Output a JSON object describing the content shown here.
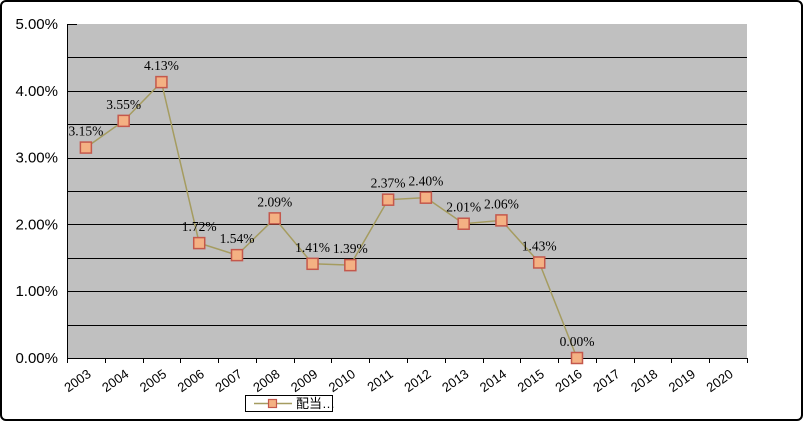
{
  "chart_data": {
    "type": "line",
    "title": "",
    "xlabel": "",
    "ylabel": "",
    "categories": [
      "2003",
      "2004",
      "2005",
      "2006",
      "2007",
      "2008",
      "2009",
      "2010",
      "2011",
      "2012",
      "2013",
      "2014",
      "2015",
      "2016",
      "2017",
      "2018",
      "2019",
      "2020"
    ],
    "series": [
      {
        "name": "配当…",
        "values": [
          3.15,
          3.55,
          4.13,
          1.72,
          1.54,
          2.09,
          1.41,
          1.39,
          2.37,
          2.4,
          2.01,
          2.06,
          1.43,
          0.0,
          null,
          null,
          null,
          null
        ]
      }
    ],
    "data_labels": [
      "3.15%",
      "3.55%",
      "4.13%",
      "1.72%",
      "1.54%",
      "2.09%",
      "1.41%",
      "1.39%",
      "2.37%",
      "2.40%",
      "2.01%",
      "2.06%",
      "1.43%",
      "0.00%"
    ],
    "y_tick_labels": [
      "0.00%",
      "1.00%",
      "2.00%",
      "3.00%",
      "4.00%",
      "5.00%"
    ],
    "ylim": [
      0,
      5
    ],
    "gridline_step_pct": 0.5,
    "grid": "on",
    "legend": {
      "label": "配当…",
      "position": "bottom"
    },
    "colors": {
      "plot_bg": "#c0c0c0",
      "grid": "#000000",
      "axis": "#000000",
      "line": "#a59c60",
      "marker_fill": "#f4b183",
      "marker_border": "#c4584c",
      "text": "#000000",
      "frame_border": "#000000",
      "page_bg": "#ffffff"
    }
  }
}
